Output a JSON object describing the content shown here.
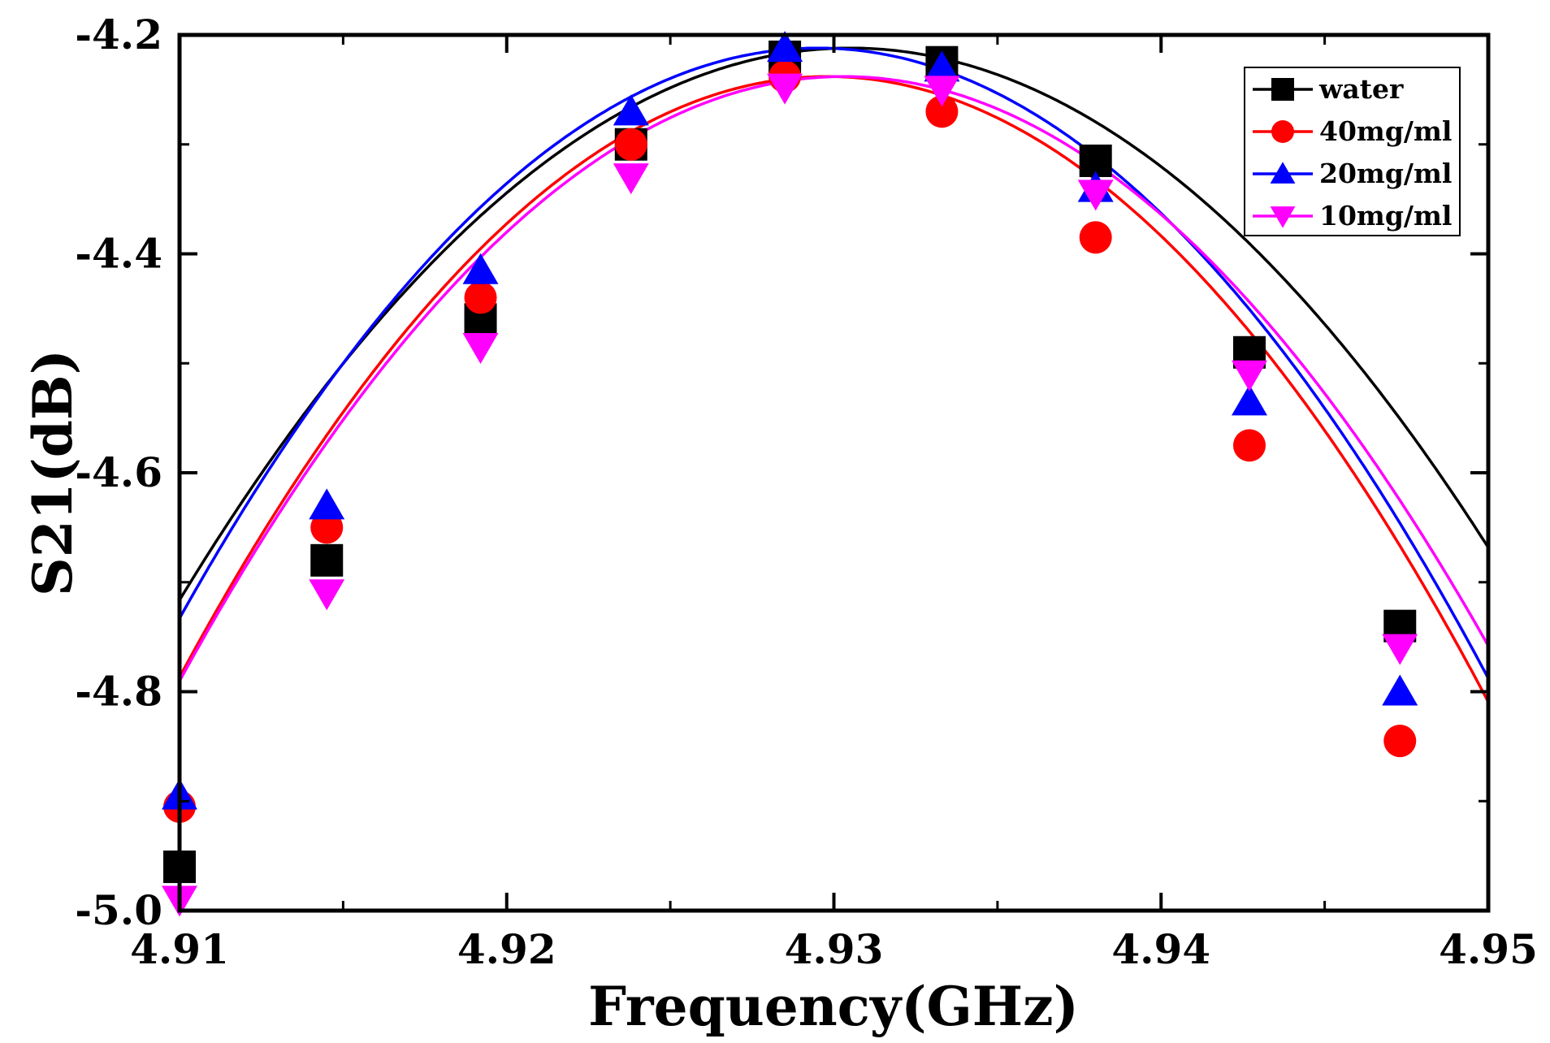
{
  "chart_data": {
    "type": "line",
    "title": "",
    "xlabel": "Frequency(GHz)",
    "ylabel": "S21(dB)",
    "xlim": [
      4.91,
      4.95
    ],
    "ylim": [
      -5.0,
      -4.2
    ],
    "xticks": [
      "4.91",
      "4.92",
      "4.93",
      "4.94",
      "4.95"
    ],
    "xtick_values": [
      4.91,
      4.92,
      4.93,
      4.94,
      4.95
    ],
    "yticks": [
      "-4.2",
      "-4.4",
      "-4.6",
      "-4.8",
      "-5.0"
    ],
    "ytick_values": [
      -4.2,
      -4.4,
      -4.6,
      -4.8,
      -5.0
    ],
    "grid": false,
    "legend_position": "top-right",
    "series": [
      {
        "name": "water",
        "color": "#000000",
        "marker": "square",
        "peak_x": 4.9305,
        "peak_y": -4.212,
        "curvature": 1200,
        "markers": [
          [
            4.91,
            -4.96
          ],
          [
            4.9145,
            -4.68
          ],
          [
            4.9192,
            -4.46
          ],
          [
            4.9238,
            -4.3
          ],
          [
            4.9285,
            -4.22
          ],
          [
            4.9333,
            -4.225
          ],
          [
            4.938,
            -4.315
          ],
          [
            4.9427,
            -4.49
          ],
          [
            4.9473,
            -4.74
          ]
        ]
      },
      {
        "name": "40mg/ml",
        "color": "#ff0000",
        "marker": "circle",
        "peak_x": 4.9298,
        "peak_y": -4.238,
        "curvature": 1400,
        "markers": [
          [
            4.91,
            -4.905
          ],
          [
            4.9145,
            -4.65
          ],
          [
            4.9192,
            -4.44
          ],
          [
            4.9238,
            -4.3
          ],
          [
            4.9285,
            -4.238
          ],
          [
            4.9333,
            -4.27
          ],
          [
            4.938,
            -4.385
          ],
          [
            4.9427,
            -4.575
          ],
          [
            4.9473,
            -4.845
          ]
        ]
      },
      {
        "name": "20mg/ml",
        "color": "#0000ff",
        "marker": "triangle-up",
        "peak_x": 4.9295,
        "peak_y": -4.212,
        "curvature": 1370,
        "markers": [
          [
            4.91,
            -4.895
          ],
          [
            4.9145,
            -4.63
          ],
          [
            4.9192,
            -4.415
          ],
          [
            4.9238,
            -4.27
          ],
          [
            4.9285,
            -4.212
          ],
          [
            4.9333,
            -4.23
          ],
          [
            4.938,
            -4.34
          ],
          [
            4.9427,
            -4.535
          ],
          [
            4.9473,
            -4.8
          ]
        ]
      },
      {
        "name": "10mg/ml",
        "color": "#ff00ff",
        "marker": "triangle-down",
        "peak_x": 4.9303,
        "peak_y": -4.238,
        "curvature": 1340,
        "markers": [
          [
            4.91,
            -4.99
          ],
          [
            4.9145,
            -4.71
          ],
          [
            4.9192,
            -4.485
          ],
          [
            4.9238,
            -4.33
          ],
          [
            4.9285,
            -4.248
          ],
          [
            4.9333,
            -4.25
          ],
          [
            4.938,
            -4.345
          ],
          [
            4.9427,
            -4.51
          ],
          [
            4.9473,
            -4.76
          ]
        ]
      }
    ]
  }
}
